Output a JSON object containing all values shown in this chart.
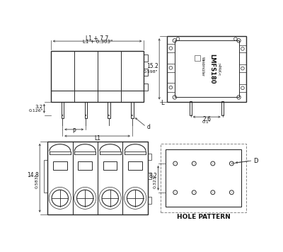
{
  "bg_color": "#ffffff",
  "line_color": "#2a2a2a",
  "dim_color": "#444444",
  "top_left": {
    "label_top1": "L1 + 7.7",
    "label_top2": "L1 + 0.303\"",
    "label_left1": "3.2",
    "label_left2": "0.126\"",
    "label_p": "P",
    "label_l1": "L1",
    "label_d": "d"
  },
  "top_right": {
    "label_height1": "15.2",
    "label_height2": "0.598\"",
    "label_width": "2.6",
    "label_width2": "0.1\"",
    "label_l": "L",
    "text1": "Weidmüller",
    "text2": "LMFS180",
    "text3": ">PAK<"
  },
  "bot_left": {
    "label_height1": "14.8",
    "label_height2": "0.583\""
  },
  "bot_right": {
    "label_height": "8.2",
    "label_height2": "0.323\"",
    "label_d": "D",
    "label_text": "HOLE PATTERN"
  }
}
